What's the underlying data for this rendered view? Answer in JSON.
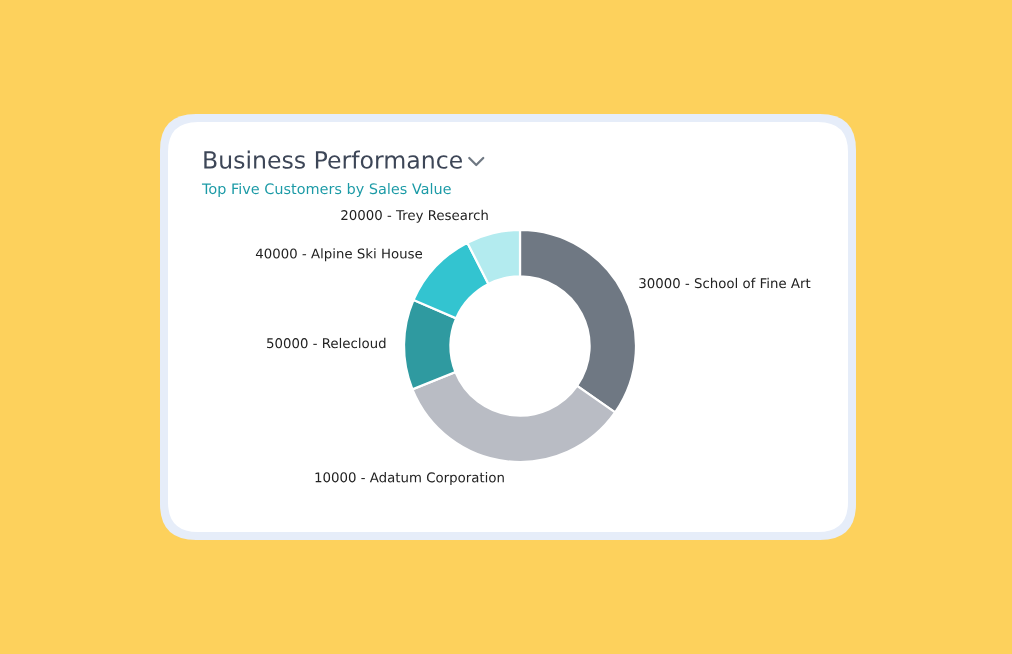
{
  "chart_data": {
    "type": "donut",
    "title": "Business Performance",
    "subtitle": "Top Five Customers by Sales Value",
    "categories": [
      "30000 - School of Fine Art",
      "10000 - Adatum Corporation",
      "50000 - Relecloud",
      "40000 - Alpine Ski House",
      "20000 - Trey Research"
    ],
    "values": [
      34.7,
      34.2,
      12.6,
      11.0,
      7.5
    ],
    "colors": [
      "#6f7883",
      "#b9bcc4",
      "#2f9aa0",
      "#33c4d0",
      "#b3ebef"
    ],
    "legend": false
  }
}
